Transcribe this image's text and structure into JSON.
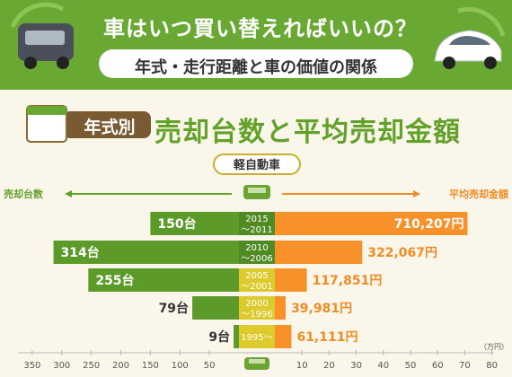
{
  "header": {
    "title": "車はいつ買い替えればいいの？",
    "subtitle": "年式・走行距離と車の価値の関係"
  },
  "section": {
    "tag": "年式別",
    "heading": "売却台数と平均売却金額"
  },
  "colors": {
    "banner": "#69a833",
    "green_bar": "#5c9a2a",
    "orange_bar": "#f7922b",
    "green_text": "#62a12a",
    "orange_text": "#f08c26",
    "label_box": "#ddca2c"
  },
  "chart_data": {
    "type": "bar",
    "category_label": "軽自動車",
    "categories": [
      "2015\n～2011",
      "2010\n～2006",
      "2005\n～2001",
      "2000\n～1996",
      "1995～"
    ],
    "series": [
      {
        "name": "売却台数",
        "direction": "left",
        "values": [
          150,
          314,
          255,
          79,
          9
        ],
        "value_labels": [
          "150台",
          "314台",
          "255台",
          "79台",
          "9台"
        ]
      },
      {
        "name": "平均売却金額",
        "direction": "right",
        "values": [
          71.0207,
          32.2067,
          11.7851,
          3.9981,
          6.1111
        ],
        "value_labels": [
          "710,207円",
          "322,067円",
          "117,851円",
          "39,981円",
          "61,111円"
        ]
      }
    ],
    "left_axis": {
      "ticks": [
        "350",
        "300",
        "250",
        "200",
        "150",
        "100",
        "50"
      ],
      "range": [
        0,
        350
      ]
    },
    "right_axis": {
      "ticks": [
        "10",
        "20",
        "30",
        "40",
        "50",
        "60",
        "70",
        "80"
      ],
      "range": [
        0,
        80
      ],
      "unit": "（万円）"
    }
  }
}
